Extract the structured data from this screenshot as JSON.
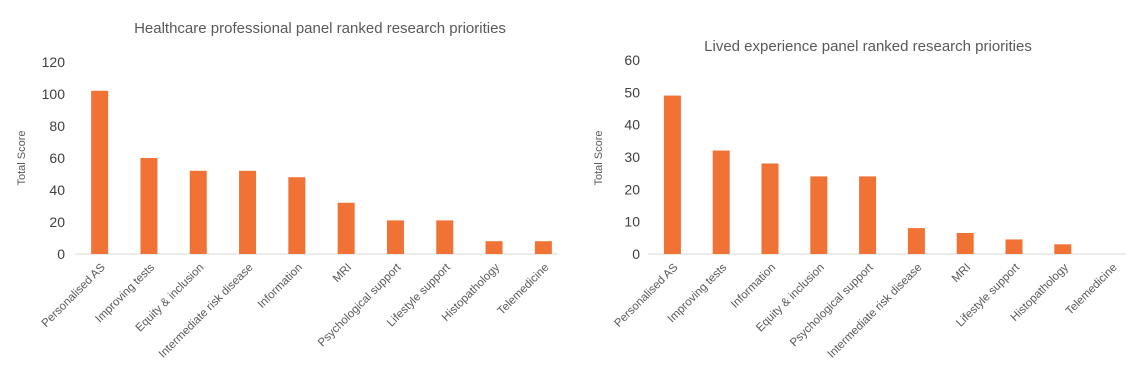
{
  "chart_data": [
    {
      "type": "bar",
      "title": "Healthcare professional panel ranked research priorities",
      "ylabel": "Total Score",
      "xlabel": "",
      "ylim": [
        0,
        120
      ],
      "yticks": [
        0,
        20,
        40,
        60,
        80,
        100,
        120
      ],
      "grid": false,
      "bar_color": "#f07235",
      "categories": [
        "Personalised AS",
        "Improving tests",
        "Equity & inclusion",
        "Intermediate risk disease",
        "Information",
        "MRI",
        "Psychological support",
        "Lifestyle support",
        "Histopathology",
        "Telemedicine"
      ],
      "values": [
        102,
        60,
        52,
        52,
        48,
        32,
        21,
        21,
        8,
        8
      ]
    },
    {
      "type": "bar",
      "title": "Lived experience panel ranked research priorities",
      "ylabel": "Total Score",
      "xlabel": "",
      "ylim": [
        0,
        60
      ],
      "yticks": [
        0,
        10,
        20,
        30,
        40,
        50,
        60
      ],
      "grid": false,
      "bar_color": "#f07235",
      "categories": [
        "Personalised AS",
        "Improving tests",
        "Information",
        "Equity & inclusion",
        "Psychological support",
        "Intermediate risk disease",
        "MRI",
        "Lifestyle support",
        "Histopathology",
        "Telemedicine"
      ],
      "values": [
        49,
        32,
        28,
        24,
        24,
        8,
        6.5,
        4.5,
        3,
        0
      ]
    }
  ]
}
